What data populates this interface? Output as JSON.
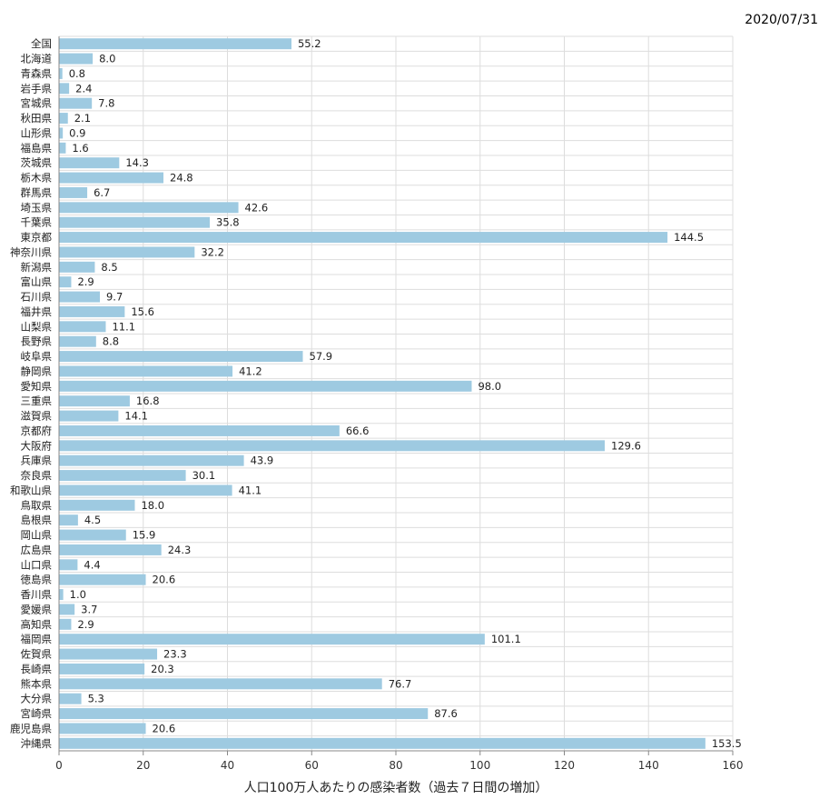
{
  "date": "2020/07/31",
  "chart_data": {
    "type": "bar",
    "orientation": "horizontal",
    "title": "",
    "xlabel": "人口100万人あたりの感染者数（過去７日間の増加）",
    "ylabel": "",
    "xlim": [
      0,
      160
    ],
    "xticks": [
      "0",
      "20",
      "40",
      "60",
      "80",
      "100",
      "120",
      "140",
      "160"
    ],
    "grid": true,
    "color": "#9ecae1",
    "categories": [
      "全国",
      "北海道",
      "青森県",
      "岩手県",
      "宮城県",
      "秋田県",
      "山形県",
      "福島県",
      "茨城県",
      "栃木県",
      "群馬県",
      "埼玉県",
      "千葉県",
      "東京都",
      "神奈川県",
      "新潟県",
      "富山県",
      "石川県",
      "福井県",
      "山梨県",
      "長野県",
      "岐阜県",
      "静岡県",
      "愛知県",
      "三重県",
      "滋賀県",
      "京都府",
      "大阪府",
      "兵庫県",
      "奈良県",
      "和歌山県",
      "鳥取県",
      "島根県",
      "岡山県",
      "広島県",
      "山口県",
      "徳島県",
      "香川県",
      "愛媛県",
      "高知県",
      "福岡県",
      "佐賀県",
      "長崎県",
      "熊本県",
      "大分県",
      "宮崎県",
      "鹿児島県",
      "沖縄県"
    ],
    "values": [
      55.2,
      8.0,
      0.8,
      2.4,
      7.8,
      2.1,
      0.9,
      1.6,
      14.3,
      24.8,
      6.7,
      42.6,
      35.8,
      144.5,
      32.2,
      8.5,
      2.9,
      9.7,
      15.6,
      11.1,
      8.8,
      57.9,
      41.2,
      98.0,
      16.8,
      14.1,
      66.6,
      129.6,
      43.9,
      30.1,
      41.1,
      18.0,
      4.5,
      15.9,
      24.3,
      4.4,
      20.6,
      1.0,
      3.7,
      2.9,
      101.1,
      23.3,
      20.3,
      76.7,
      5.3,
      87.6,
      20.6,
      153.5
    ]
  }
}
